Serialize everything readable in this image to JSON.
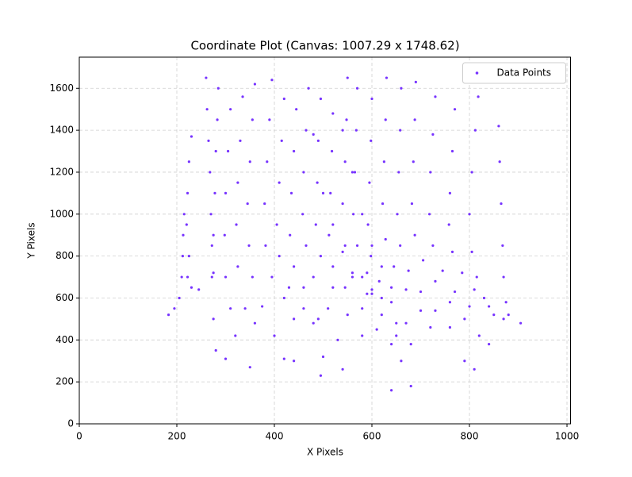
{
  "chart_data": {
    "type": "scatter",
    "title": "Coordinate Plot (Canvas: 1007.29 x 1748.62)",
    "x_label": "X Pixels",
    "y_label": "Y Pixels",
    "xlim": [
      0,
      1007.29
    ],
    "ylim": [
      0,
      1748.62
    ],
    "xticks": [
      0,
      200,
      400,
      600,
      800,
      1000
    ],
    "yticks": [
      0,
      200,
      400,
      600,
      800,
      1000,
      1200,
      1400,
      1600
    ],
    "grid": true,
    "legend": "upper right",
    "x": [
      215,
      213,
      212,
      210,
      205,
      195,
      183,
      230,
      225,
      222,
      220,
      225,
      222,
      230,
      245,
      260,
      262,
      265,
      268,
      270,
      272,
      275,
      285,
      283,
      280,
      278,
      275,
      272,
      275,
      280,
      300,
      310,
      305,
      300,
      298,
      300,
      310,
      320,
      350,
      335,
      330,
      325,
      322,
      325,
      340,
      360,
      360,
      355,
      350,
      345,
      348,
      355,
      375,
      400,
      420,
      440,
      395,
      390,
      385,
      380,
      382,
      395,
      420,
      440,
      420,
      415,
      410,
      405,
      410,
      430,
      460,
      480,
      445,
      440,
      435,
      432,
      440,
      460,
      490,
      500,
      495,
      470,
      465,
      460,
      458,
      465,
      480,
      510,
      530,
      540,
      495,
      490,
      488,
      485,
      495,
      520,
      550,
      580,
      520,
      518,
      515,
      512,
      520,
      545,
      580,
      610,
      640,
      550,
      548,
      545,
      540,
      545,
      560,
      590,
      620,
      650,
      660,
      570,
      568,
      565,
      562,
      570,
      590,
      620,
      650,
      640,
      600,
      598,
      595,
      592,
      598,
      615,
      640,
      670,
      680,
      680,
      630,
      628,
      625,
      622,
      628,
      645,
      670,
      700,
      720,
      660,
      658,
      655,
      652,
      658,
      675,
      700,
      730,
      760,
      790,
      690,
      688,
      685,
      682,
      688,
      705,
      730,
      760,
      790,
      810,
      730,
      725,
      720,
      718,
      725,
      745,
      770,
      800,
      820,
      770,
      765,
      760,
      758,
      765,
      785,
      810,
      840,
      870,
      905,
      818,
      812,
      805,
      800,
      805,
      815,
      830,
      850,
      840,
      860,
      862,
      865,
      868,
      870,
      875,
      880,
      540,
      560,
      580,
      600,
      620,
      640,
      600,
      580,
      480,
      500,
      520,
      540,
      560,
      600
    ],
    "series": [
      {
        "name": "Data Points",
        "color": "#7733ff",
        "values": [
          1000,
          900,
          800,
          700,
          600,
          550,
          520,
          1370,
          1250,
          1100,
          950,
          800,
          700,
          650,
          640,
          1650,
          1500,
          1350,
          1200,
          1000,
          850,
          720,
          1600,
          1450,
          1300,
          1100,
          900,
          700,
          500,
          350,
          310,
          1500,
          1300,
          1100,
          900,
          700,
          550,
          420,
          270,
          1560,
          1350,
          1150,
          950,
          750,
          550,
          480,
          1620,
          1450,
          1250,
          1050,
          850,
          700,
          560,
          420,
          310,
          300,
          1640,
          1450,
          1250,
          1050,
          850,
          700,
          600,
          500,
          1550,
          1350,
          1150,
          950,
          800,
          650,
          550,
          480,
          1500,
          1300,
          1100,
          900,
          750,
          650,
          500,
          320,
          230,
          1600,
          1400,
          1200,
          1000,
          850,
          700,
          550,
          400,
          260,
          1550,
          1350,
          1150,
          950,
          800,
          650,
          520,
          420,
          1480,
          1300,
          1100,
          900,
          750,
          650,
          550,
          450,
          380,
          1650,
          1450,
          1250,
          1050,
          850,
          720,
          620,
          520,
          420,
          300,
          1600,
          1400,
          1200,
          1000,
          850,
          720,
          600,
          480,
          160,
          1550,
          1350,
          1150,
          950,
          800,
          680,
          580,
          480,
          380,
          180,
          1650,
          1450,
          1250,
          1050,
          880,
          750,
          640,
          540,
          460,
          1600,
          1400,
          1200,
          1000,
          850,
          730,
          630,
          540,
          460,
          300,
          1630,
          1450,
          1250,
          1050,
          900,
          780,
          680,
          580,
          500,
          260,
          1560,
          1380,
          1200,
          1000,
          850,
          730,
          630,
          560,
          420,
          1500,
          1300,
          1100,
          950,
          820,
          720,
          640,
          560,
          500,
          480,
          1560,
          1400,
          1200,
          1000,
          820,
          700,
          600,
          520,
          380,
          1420,
          1250,
          1050,
          850,
          700,
          580,
          520,
          1400,
          1200,
          1000,
          850,
          750,
          650,
          620,
          700,
          1380,
          1100,
          950,
          820,
          700,
          640
        ]
      }
    ]
  }
}
